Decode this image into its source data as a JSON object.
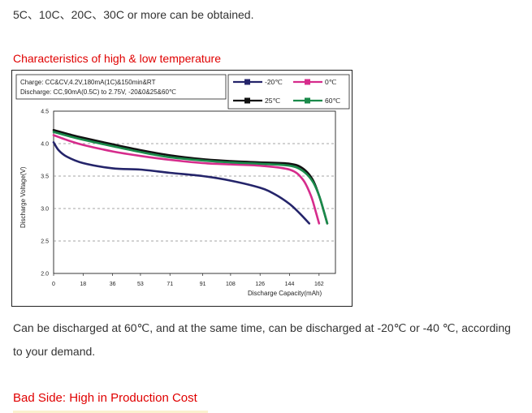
{
  "intro_text": "5C、10C、20C、30C or more  can be obtained.",
  "heading_temperature": "Characteristics of high & low temperature",
  "paragraph_line1": "Can be discharged at 60℃, and at the same time, can be discharged at -20℃ or -40 ℃, according",
  "paragraph_line2": "to your demand.",
  "heading_bad_side": "Bad Side: High in Production Cost",
  "chart_data": {
    "type": "line",
    "info_lines": [
      "Charge: CC&CV,4.2V,180mA(1C)&150min&RT",
      "Discharge: CC,90mA(0.5C) to 2.75V, -20&0&25&60℃"
    ],
    "xlabel": "Discharge Capacity(mAh)",
    "ylabel": "Discharge Voltage(V)",
    "xlim": [
      0,
      172
    ],
    "ylim": [
      2.0,
      4.5
    ],
    "x_ticks": [
      0,
      18,
      36,
      53,
      71,
      91,
      108,
      126,
      144,
      162
    ],
    "y_ticks": [
      2.0,
      2.5,
      3.0,
      3.5,
      4.0,
      4.5
    ],
    "y_tick_labels": [
      "2.0",
      "2.5",
      "3.0",
      "3.5",
      "4.0",
      "4.5"
    ],
    "gridlines": [
      2.5,
      3.0,
      3.5,
      4.0
    ],
    "series": [
      {
        "name": "-20℃",
        "color": "#24246a",
        "points": [
          [
            0,
            4.02
          ],
          [
            3,
            3.9
          ],
          [
            8,
            3.8
          ],
          [
            18,
            3.7
          ],
          [
            36,
            3.62
          ],
          [
            53,
            3.6
          ],
          [
            71,
            3.55
          ],
          [
            91,
            3.5
          ],
          [
            108,
            3.43
          ],
          [
            126,
            3.32
          ],
          [
            135,
            3.22
          ],
          [
            144,
            3.07
          ],
          [
            150,
            2.93
          ],
          [
            156,
            2.77
          ]
        ]
      },
      {
        "name": "0℃",
        "color": "#d62c8c",
        "points": [
          [
            0,
            4.13
          ],
          [
            10,
            4.04
          ],
          [
            18,
            3.98
          ],
          [
            36,
            3.88
          ],
          [
            53,
            3.81
          ],
          [
            71,
            3.75
          ],
          [
            91,
            3.7
          ],
          [
            108,
            3.68
          ],
          [
            126,
            3.66
          ],
          [
            144,
            3.6
          ],
          [
            152,
            3.45
          ],
          [
            157,
            3.2
          ],
          [
            160,
            2.95
          ],
          [
            162,
            2.77
          ]
        ]
      },
      {
        "name": "25℃",
        "color": "#111111",
        "points": [
          [
            0,
            4.21
          ],
          [
            10,
            4.14
          ],
          [
            18,
            4.09
          ],
          [
            36,
            3.99
          ],
          [
            53,
            3.9
          ],
          [
            71,
            3.82
          ],
          [
            91,
            3.76
          ],
          [
            108,
            3.73
          ],
          [
            126,
            3.71
          ],
          [
            144,
            3.69
          ],
          [
            152,
            3.62
          ],
          [
            158,
            3.45
          ],
          [
            162,
            3.2
          ],
          [
            165,
            2.95
          ],
          [
            167,
            2.77
          ]
        ]
      },
      {
        "name": "60℃",
        "color": "#1a8a4a",
        "points": [
          [
            0,
            4.18
          ],
          [
            10,
            4.11
          ],
          [
            18,
            4.06
          ],
          [
            36,
            3.96
          ],
          [
            53,
            3.87
          ],
          [
            71,
            3.79
          ],
          [
            91,
            3.74
          ],
          [
            108,
            3.71
          ],
          [
            126,
            3.69
          ],
          [
            144,
            3.66
          ],
          [
            152,
            3.58
          ],
          [
            158,
            3.42
          ],
          [
            162,
            3.2
          ],
          [
            165,
            2.95
          ],
          [
            167,
            2.77
          ]
        ]
      }
    ],
    "legend": [
      {
        "label": "-20℃",
        "color": "#24246a"
      },
      {
        "label": "0℃",
        "color": "#d62c8c"
      },
      {
        "label": "25℃",
        "color": "#111111"
      },
      {
        "label": "60℃",
        "color": "#1a8a4a"
      }
    ]
  }
}
